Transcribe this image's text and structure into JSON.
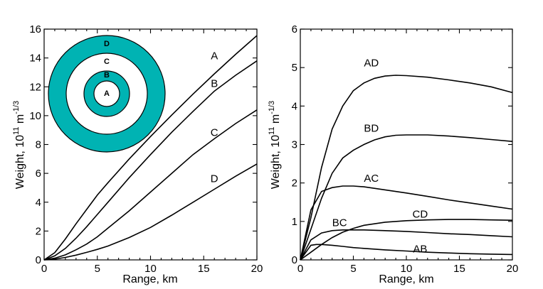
{
  "chart_data": [
    {
      "type": "line",
      "xlabel": "Range, km",
      "ylabel_main": "Weight, 10",
      "ylabel_sup1": "11",
      "ylabel_mid": " m",
      "ylabel_sup2": "-1/3",
      "xlim": [
        0,
        20
      ],
      "ylim": [
        0,
        16
      ],
      "xticks": [
        0,
        5,
        10,
        15,
        20
      ],
      "yticks": [
        0,
        2,
        4,
        6,
        8,
        10,
        12,
        14,
        16
      ],
      "series": [
        {
          "name": "A",
          "label_at": [
            16,
            13.9
          ],
          "x": [
            0,
            1,
            2,
            3,
            4,
            5,
            6,
            8,
            10,
            12,
            14,
            16,
            18,
            20
          ],
          "y": [
            0,
            0.5,
            1.45,
            2.5,
            3.5,
            4.5,
            5.35,
            7.0,
            8.55,
            10.05,
            11.5,
            12.9,
            14.25,
            15.55
          ]
        },
        {
          "name": "B",
          "label_at": [
            16,
            12.0
          ],
          "x": [
            0,
            1,
            2,
            3,
            4,
            5,
            6,
            8,
            10,
            12,
            14,
            16,
            18,
            20
          ],
          "y": [
            0,
            0.28,
            0.8,
            1.5,
            2.3,
            3.15,
            4.0,
            5.7,
            7.3,
            8.85,
            10.3,
            11.7,
            12.8,
            13.8
          ]
        },
        {
          "name": "C",
          "label_at": [
            16,
            8.6
          ],
          "x": [
            0,
            1,
            2,
            3,
            4,
            5,
            6,
            8,
            10,
            12,
            14,
            16,
            18,
            20
          ],
          "y": [
            0,
            0.12,
            0.35,
            0.7,
            1.1,
            1.6,
            2.2,
            3.4,
            4.7,
            6.0,
            7.3,
            8.4,
            9.45,
            10.4
          ]
        },
        {
          "name": "D",
          "label_at": [
            16,
            5.4
          ],
          "x": [
            0,
            1,
            2,
            3,
            4,
            5,
            6,
            8,
            10,
            12,
            14,
            16,
            18,
            20
          ],
          "y": [
            0,
            0.05,
            0.17,
            0.33,
            0.52,
            0.73,
            0.96,
            1.55,
            2.25,
            3.1,
            4.0,
            4.9,
            5.8,
            6.65
          ]
        }
      ],
      "inset": {
        "description_labels": [
          "D",
          "C",
          "B",
          "A"
        ],
        "fill_color": "#00b3b3",
        "edge_color": "#000000"
      }
    },
    {
      "type": "line",
      "xlabel": "Range, km",
      "ylabel_main": "Weight, 10",
      "ylabel_sup1": "11",
      "ylabel_mid": " m",
      "ylabel_sup2": "-1/3",
      "xlim": [
        0,
        20
      ],
      "ylim": [
        0,
        6
      ],
      "xticks": [
        0,
        5,
        10,
        15,
        20
      ],
      "yticks": [
        0,
        1,
        2,
        3,
        4,
        5,
        6
      ],
      "series": [
        {
          "name": "AD",
          "label_at": [
            6.7,
            5.03
          ],
          "x": [
            0,
            1,
            2,
            3,
            4,
            5,
            6,
            7,
            8,
            9,
            10,
            12,
            14,
            16,
            18,
            20
          ],
          "y": [
            0,
            1.1,
            2.4,
            3.4,
            4.0,
            4.4,
            4.6,
            4.72,
            4.78,
            4.8,
            4.79,
            4.75,
            4.68,
            4.6,
            4.5,
            4.35
          ]
        },
        {
          "name": "BD",
          "label_at": [
            6.7,
            3.33
          ],
          "x": [
            0,
            1,
            2,
            3,
            4,
            5,
            6,
            7,
            8,
            9,
            10,
            12,
            14,
            16,
            18,
            20
          ],
          "y": [
            0,
            0.8,
            1.6,
            2.25,
            2.65,
            2.85,
            3.0,
            3.12,
            3.2,
            3.24,
            3.25,
            3.25,
            3.22,
            3.18,
            3.13,
            3.08
          ]
        },
        {
          "name": "AC",
          "label_at": [
            6.7,
            2.03
          ],
          "x": [
            0,
            1,
            2,
            3,
            4,
            5,
            6,
            8,
            10,
            12,
            14,
            16,
            18,
            20
          ],
          "y": [
            0,
            1.3,
            1.78,
            1.88,
            1.92,
            1.92,
            1.9,
            1.82,
            1.74,
            1.65,
            1.56,
            1.48,
            1.4,
            1.32
          ]
        },
        {
          "name": "CD",
          "label_at": [
            11.3,
            1.1
          ],
          "x": [
            0,
            1,
            2,
            3,
            4,
            5,
            6,
            8,
            10,
            12,
            14,
            16,
            18,
            20
          ],
          "y": [
            0,
            0.2,
            0.4,
            0.58,
            0.72,
            0.82,
            0.9,
            0.98,
            1.02,
            1.04,
            1.05,
            1.05,
            1.04,
            1.03
          ]
        },
        {
          "name": "BC",
          "label_at": [
            3.7,
            0.88
          ],
          "x": [
            0,
            1,
            2,
            3,
            4,
            5,
            6,
            8,
            10,
            12,
            14,
            16,
            18,
            20
          ],
          "y": [
            0,
            0.52,
            0.7,
            0.76,
            0.78,
            0.78,
            0.78,
            0.76,
            0.74,
            0.71,
            0.68,
            0.66,
            0.63,
            0.6
          ]
        },
        {
          "name": "AB",
          "label_at": [
            11.3,
            0.19
          ],
          "x": [
            0,
            1,
            1.5,
            2,
            3,
            4,
            5,
            6,
            8,
            10,
            12,
            14,
            16,
            18,
            20
          ],
          "y": [
            0,
            0.38,
            0.4,
            0.4,
            0.38,
            0.35,
            0.32,
            0.3,
            0.26,
            0.23,
            0.2,
            0.18,
            0.16,
            0.15,
            0.14
          ]
        }
      ]
    }
  ]
}
